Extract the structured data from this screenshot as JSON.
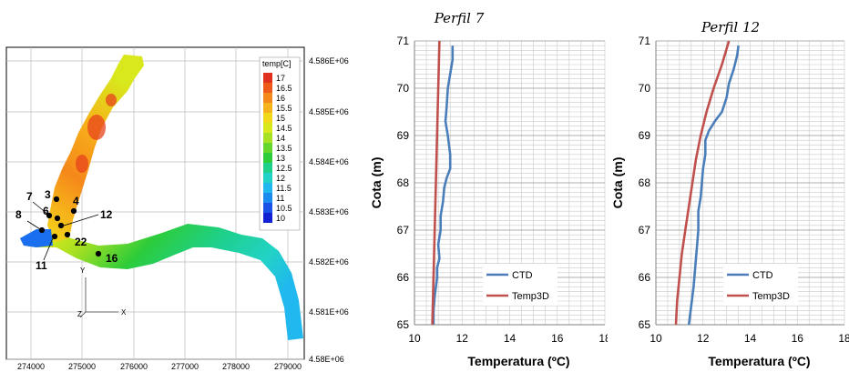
{
  "chart_data": [
    {
      "type": "heatmap",
      "title": "",
      "legend": {
        "title": "temp[C]",
        "levels": [
          "17",
          "16.5",
          "16",
          "15.5",
          "15",
          "14.5",
          "14",
          "13.5",
          "13",
          "12.5",
          "12",
          "11.5",
          "11",
          "10.5",
          "10"
        ],
        "colors": [
          "#e03020",
          "#ee5a1a",
          "#f5881a",
          "#f6b21a",
          "#f2d81a",
          "#d8e81c",
          "#a8e022",
          "#66d62a",
          "#2ccc3a",
          "#1ed08a",
          "#22d2c6",
          "#20b8ee",
          "#1a8cf0",
          "#1a52e8",
          "#1222d2"
        ]
      },
      "x_ticks": [
        "274000",
        "275000",
        "276000",
        "277000",
        "278000",
        "279000"
      ],
      "y_ticks": [
        "4.586E+06",
        "4.585E+06",
        "4.584E+06",
        "4.583E+06",
        "4.582E+06",
        "4.581E+06",
        "4.58E+06"
      ],
      "axis_icon": {
        "y": "Y",
        "z": "Z",
        "x": "X"
      },
      "stations": [
        "3",
        "4",
        "7",
        "6",
        "12",
        "8",
        "22",
        "11",
        "16"
      ]
    },
    {
      "type": "line",
      "title": "Perfil 7",
      "xlabel": "Temperatura (ºC)",
      "ylabel": "Cota (m)",
      "xlim": [
        10,
        18
      ],
      "ylim": [
        65,
        71
      ],
      "x_ticks": [
        "10",
        "12",
        "14",
        "16",
        "18"
      ],
      "y_ticks": [
        "65",
        "66",
        "67",
        "68",
        "69",
        "70",
        "71"
      ],
      "legend_position": "bottom-right",
      "series": [
        {
          "name": "CTD",
          "color": "#4a7ebb",
          "points": [
            [
              11.6,
              70.9
            ],
            [
              11.6,
              70.6
            ],
            [
              11.5,
              70.3
            ],
            [
              11.4,
              70.0
            ],
            [
              11.35,
              69.6
            ],
            [
              11.3,
              69.3
            ],
            [
              11.4,
              69.0
            ],
            [
              11.5,
              68.6
            ],
            [
              11.5,
              68.3
            ],
            [
              11.35,
              68.1
            ],
            [
              11.25,
              67.9
            ],
            [
              11.2,
              67.6
            ],
            [
              11.1,
              67.3
            ],
            [
              11.1,
              67.0
            ],
            [
              11.0,
              66.7
            ],
            [
              11.05,
              66.4
            ],
            [
              10.95,
              66.2
            ],
            [
              10.95,
              66.0
            ],
            [
              10.85,
              65.6
            ],
            [
              10.8,
              65.3
            ],
            [
              10.8,
              65.0
            ]
          ]
        },
        {
          "name": "Temp3D",
          "color": "#c0504d",
          "points": [
            [
              11.05,
              71.0
            ],
            [
              11.0,
              70.0
            ],
            [
              10.95,
              69.0
            ],
            [
              10.9,
              68.0
            ],
            [
              10.85,
              67.0
            ],
            [
              10.8,
              66.0
            ],
            [
              10.75,
              65.0
            ]
          ]
        }
      ]
    },
    {
      "type": "line",
      "title": "Perfil 12",
      "xlabel": "Temperatura (ºC)",
      "ylabel": "Cota (m)",
      "xlim": [
        10,
        18
      ],
      "ylim": [
        65,
        71
      ],
      "x_ticks": [
        "10",
        "12",
        "14",
        "16",
        "18"
      ],
      "y_ticks": [
        "65",
        "66",
        "67",
        "68",
        "69",
        "70",
        "71"
      ],
      "legend_position": "bottom-right",
      "series": [
        {
          "name": "CTD",
          "color": "#4a7ebb",
          "points": [
            [
              13.5,
              70.9
            ],
            [
              13.45,
              70.7
            ],
            [
              13.3,
              70.4
            ],
            [
              13.1,
              70.1
            ],
            [
              13.0,
              69.8
            ],
            [
              12.8,
              69.5
            ],
            [
              12.5,
              69.3
            ],
            [
              12.25,
              69.1
            ],
            [
              12.1,
              68.9
            ],
            [
              12.1,
              68.6
            ],
            [
              12.0,
              68.3
            ],
            [
              11.95,
              68.0
            ],
            [
              11.9,
              67.7
            ],
            [
              11.8,
              67.4
            ],
            [
              11.8,
              67.0
            ],
            [
              11.75,
              66.7
            ],
            [
              11.7,
              66.4
            ],
            [
              11.65,
              66.1
            ],
            [
              11.6,
              65.8
            ],
            [
              11.5,
              65.4
            ],
            [
              11.4,
              65.0
            ]
          ]
        },
        {
          "name": "Temp3D",
          "color": "#c0504d",
          "points": [
            [
              13.1,
              71.0
            ],
            [
              12.8,
              70.5
            ],
            [
              12.45,
              70.0
            ],
            [
              12.15,
              69.5
            ],
            [
              11.9,
              69.0
            ],
            [
              11.7,
              68.5
            ],
            [
              11.55,
              68.0
            ],
            [
              11.4,
              67.5
            ],
            [
              11.25,
              67.0
            ],
            [
              11.1,
              66.5
            ],
            [
              11.0,
              66.0
            ],
            [
              10.9,
              65.5
            ],
            [
              10.85,
              65.0
            ]
          ]
        }
      ]
    }
  ]
}
